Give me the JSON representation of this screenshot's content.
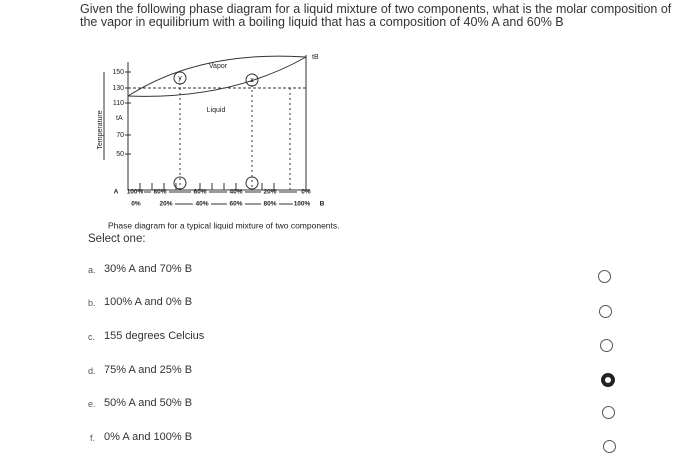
{
  "question_lines": [
    "Given the following phase diagram for a liquid mixture of two components, what is the molar composition of",
    "the vapor in equilibrium with a boiling liquid that has a composition of 40% A and 60% B"
  ],
  "diagram": {
    "y_axis_title": "Temperature",
    "y_ticks": [
      "150",
      "130",
      "110",
      "70",
      "50"
    ],
    "t_a": "tA",
    "t_b": "tB",
    "vapor": "Vapor",
    "liquid": "Liquid",
    "points": [
      "y",
      "x"
    ],
    "composition_a": [
      "A",
      "100%",
      "80%",
      "60%",
      "40%",
      "20%",
      "0%"
    ],
    "composition_b": [
      "0%",
      "20%",
      "40%",
      "60%",
      "80%",
      "100%",
      "B"
    ],
    "caption": "Phase diagram for a typical liquid mixture of two components."
  },
  "select_label": "Select one:",
  "options": [
    {
      "letter": "a.",
      "text": "30% A and 70% B"
    },
    {
      "letter": "b.",
      "text": "100% A and 0% B"
    },
    {
      "letter": "c.",
      "text": "155 degrees Celcius"
    },
    {
      "letter": "d.",
      "text": "75% A and 25% B"
    },
    {
      "letter": "e.",
      "text": "50% A and 50% B"
    },
    {
      "letter": "f.",
      "text": "0% A and 100% B"
    }
  ],
  "selected": 3
}
